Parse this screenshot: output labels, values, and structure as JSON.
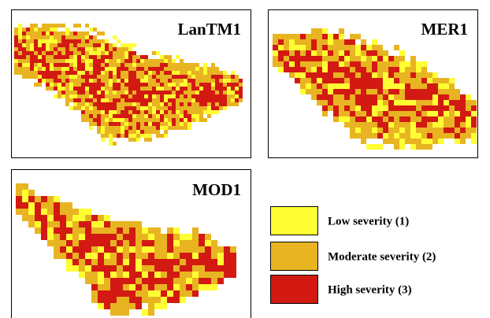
{
  "panels": [
    {
      "title": "LanTM1"
    },
    {
      "title": "MER1"
    },
    {
      "title": "MOD1"
    }
  ],
  "legend": [
    {
      "label": "Low severity (1)",
      "color": "#ffff33"
    },
    {
      "label": "Moderate severity (2)",
      "color": "#e8b422"
    },
    {
      "label": "High severity (3)",
      "color": "#d21a12"
    }
  ]
}
